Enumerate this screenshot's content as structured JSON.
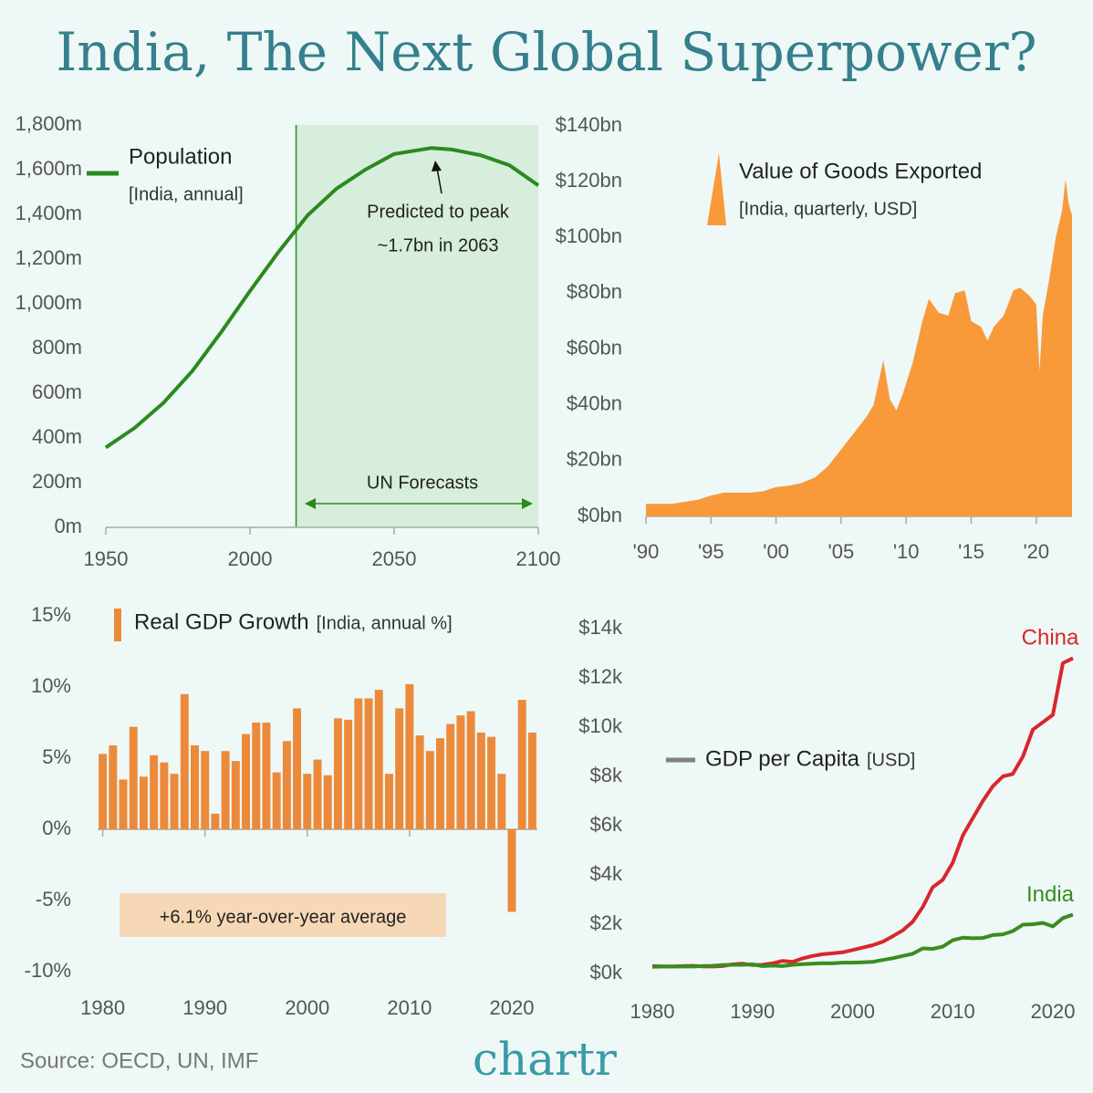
{
  "title": "India, The Next Global Superpower?",
  "source": "Source: OECD, UN, IMF",
  "logo": "chartr",
  "chart_data": [
    {
      "type": "line",
      "subtitle": "[India, annual]",
      "x": [
        1950,
        1960,
        1970,
        1980,
        1990,
        2000,
        2010,
        2020,
        2030,
        2040,
        2050,
        2063,
        2070,
        2080,
        2090,
        2100
      ],
      "series": [
        {
          "name": "Population",
          "color": "#2a8a1e",
          "values": [
            357,
            445,
            557,
            699,
            873,
            1057,
            1234,
            1396,
            1515,
            1600,
            1670,
            1697,
            1690,
            1665,
            1620,
            1530
          ]
        }
      ],
      "xlim": [
        1950,
        2100
      ],
      "xticks": [
        1950,
        2000,
        2050,
        2100
      ],
      "ylim": [
        0,
        1800
      ],
      "yticks": [
        {
          "value": 0,
          "label": "0m"
        },
        {
          "value": 200,
          "label": "200m"
        },
        {
          "value": 400,
          "label": "400m"
        },
        {
          "value": 600,
          "label": "600m"
        },
        {
          "value": 800,
          "label": "800m"
        },
        {
          "value": 1000,
          "label": "1,000m"
        },
        {
          "value": 1200,
          "label": "1,200m"
        },
        {
          "value": 1400,
          "label": "1,400m"
        },
        {
          "value": 1600,
          "label": "1,600m"
        },
        {
          "value": 1800,
          "label": "1,800m"
        }
      ],
      "forecast_start": 2016,
      "annotations": [
        "Predicted to peak",
        "~1.7bn in 2063",
        "UN Forecasts"
      ]
    },
    {
      "type": "area",
      "subtitle": "[India, quarterly, USD]",
      "x": [
        1990,
        1992,
        1994,
        1995,
        1996,
        1997,
        1998,
        1999,
        2000,
        2001,
        2002,
        2003,
        2004,
        2005,
        2006,
        2007,
        2007.5,
        2008.25,
        2008.75,
        2009.25,
        2009.75,
        2010.5,
        2011.25,
        2011.75,
        2012.5,
        2013.25,
        2013.75,
        2014.5,
        2015,
        2015.75,
        2016.25,
        2016.75,
        2017.5,
        2018.25,
        2018.75,
        2019.5,
        2020,
        2020.25,
        2020.5,
        2021,
        2021.5,
        2022,
        2022.25,
        2022.5,
        2022.75
      ],
      "series": [
        {
          "name": "Value of Goods Exported",
          "color": "#f89a3a",
          "values": [
            4.5,
            4.5,
            6,
            7.5,
            8.5,
            8.5,
            8.5,
            9,
            10.5,
            11,
            12,
            14,
            18,
            24,
            30,
            36,
            40,
            56,
            42,
            38,
            44,
            55,
            70,
            78,
            73,
            72,
            80,
            81,
            70,
            68,
            63,
            68,
            72,
            81,
            82,
            79,
            76,
            52,
            72,
            85,
            100,
            110,
            121,
            112,
            108
          ]
        }
      ],
      "xlim": [
        1990,
        2022.75
      ],
      "xticks": [
        {
          "value": 1990,
          "label": "'90"
        },
        {
          "value": 1995,
          "label": "'95"
        },
        {
          "value": 2000,
          "label": "'00"
        },
        {
          "value": 2005,
          "label": "'05"
        },
        {
          "value": 2010,
          "label": "'10"
        },
        {
          "value": 2015,
          "label": "'15"
        },
        {
          "value": 2020,
          "label": "'20"
        }
      ],
      "ylim": [
        0,
        140
      ],
      "yticks": [
        {
          "value": 0,
          "label": "$0bn"
        },
        {
          "value": 20,
          "label": "$20bn"
        },
        {
          "value": 40,
          "label": "$40bn"
        },
        {
          "value": 60,
          "label": "$60bn"
        },
        {
          "value": 80,
          "label": "$80bn"
        },
        {
          "value": 100,
          "label": "$100bn"
        },
        {
          "value": 120,
          "label": "$120bn"
        },
        {
          "value": 140,
          "label": "$140bn"
        }
      ]
    },
    {
      "type": "bar",
      "subtitle": "[India, annual %]",
      "x": [
        1980,
        1981,
        1982,
        1983,
        1984,
        1985,
        1986,
        1987,
        1988,
        1989,
        1990,
        1991,
        1992,
        1993,
        1994,
        1995,
        1996,
        1997,
        1998,
        1999,
        2000,
        2001,
        2002,
        2003,
        2004,
        2005,
        2006,
        2007,
        2008,
        2009,
        2010,
        2011,
        2012,
        2013,
        2014,
        2015,
        2016,
        2017,
        2018,
        2019,
        2020,
        2021,
        2022
      ],
      "series": [
        {
          "name": "Real GDP Growth",
          "color": "#ec8a3b",
          "values": [
            5.3,
            5.9,
            3.5,
            7.2,
            3.7,
            5.2,
            4.7,
            3.9,
            9.5,
            5.9,
            5.5,
            1.1,
            5.5,
            4.8,
            6.7,
            7.5,
            7.5,
            4.0,
            6.2,
            8.5,
            3.9,
            4.9,
            3.8,
            7.8,
            7.7,
            9.2,
            9.2,
            9.8,
            3.9,
            8.5,
            10.2,
            6.6,
            5.5,
            6.4,
            7.4,
            8.0,
            8.3,
            6.8,
            6.5,
            3.9,
            -5.8,
            9.1,
            6.8
          ]
        }
      ],
      "xlim": [
        1979.5,
        2022.5
      ],
      "xticks": [
        1980,
        1990,
        2000,
        2010,
        2020
      ],
      "ylim": [
        -10,
        15
      ],
      "yticks": [
        {
          "value": -10,
          "label": "-10%"
        },
        {
          "value": -5,
          "label": "-5%"
        },
        {
          "value": 0,
          "label": "0%"
        },
        {
          "value": 5,
          "label": "5%"
        },
        {
          "value": 10,
          "label": "10%"
        },
        {
          "value": 15,
          "label": "15%"
        }
      ],
      "annotations": [
        "+6.1% year-over-year average"
      ]
    },
    {
      "type": "line",
      "title": "GDP per Capita",
      "subtitle": "[USD]",
      "series_labels": "end",
      "x": [
        1980,
        1981,
        1982,
        1983,
        1984,
        1985,
        1986,
        1987,
        1988,
        1989,
        1990,
        1991,
        1992,
        1993,
        1994,
        1995,
        1996,
        1997,
        1998,
        1999,
        2000,
        2001,
        2002,
        2003,
        2004,
        2005,
        2006,
        2007,
        2008,
        2009,
        2010,
        2011,
        2012,
        2013,
        2014,
        2015,
        2016,
        2017,
        2018,
        2019,
        2020,
        2021,
        2022
      ],
      "series": [
        {
          "name": "China",
          "color": "#d9262c",
          "values": [
            300,
            290,
            280,
            300,
            310,
            290,
            280,
            300,
            370,
            400,
            340,
            350,
            410,
            510,
            470,
            610,
            710,
            780,
            820,
            860,
            950,
            1050,
            1150,
            1290,
            1510,
            1750,
            2100,
            2700,
            3500,
            3800,
            4500,
            5600,
            6300,
            7000,
            7600,
            8000,
            8100,
            8800,
            9900,
            10200,
            10500,
            12600,
            12800
          ]
        },
        {
          "name": "India",
          "color": "#3a8c1f",
          "values": [
            270,
            280,
            280,
            290,
            280,
            300,
            310,
            340,
            350,
            350,
            370,
            300,
            320,
            300,
            350,
            380,
            400,
            420,
            410,
            440,
            440,
            450,
            470,
            550,
            620,
            710,
            800,
            1020,
            1000,
            1090,
            1350,
            1450,
            1430,
            1440,
            1560,
            1590,
            1720,
            1980,
            2000,
            2050,
            1910,
            2250,
            2390
          ]
        }
      ],
      "xlim": [
        1980,
        2022
      ],
      "xticks": [
        1980,
        1990,
        2000,
        2010,
        2020
      ],
      "ylim": [
        0,
        14000
      ],
      "yticks": [
        {
          "value": 0,
          "label": "$0k"
        },
        {
          "value": 2000,
          "label": "$2k"
        },
        {
          "value": 4000,
          "label": "$4k"
        },
        {
          "value": 6000,
          "label": "$6k"
        },
        {
          "value": 8000,
          "label": "$8k"
        },
        {
          "value": 10000,
          "label": "$10k"
        },
        {
          "value": 12000,
          "label": "$12k"
        },
        {
          "value": 14000,
          "label": "$14k"
        }
      ],
      "legend_color": "#808080"
    }
  ]
}
